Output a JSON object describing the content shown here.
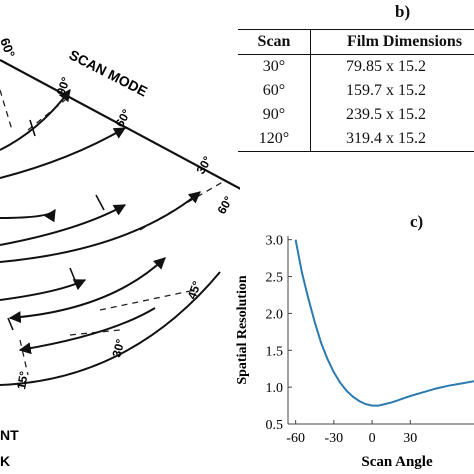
{
  "diagram": {
    "scan_mode_label": "SCAN MODE",
    "arc_labels": [
      "90°",
      "60°",
      "30°",
      "60°",
      "45°",
      "30°",
      "15°"
    ],
    "corner_top": "60°",
    "bottom_text_1": "NT",
    "bottom_text_2": "K"
  },
  "table": {
    "label": "b)",
    "headers": [
      "Scan",
      "Film Dimensions"
    ],
    "rows": [
      {
        "scan": "30°",
        "dims": "79.85 x 15.2"
      },
      {
        "scan": "60°",
        "dims": "159.7 x 15.2"
      },
      {
        "scan": "90°",
        "dims": "239.5 x 15.2"
      },
      {
        "scan": "120°",
        "dims": "319.4 x 15.2"
      }
    ]
  },
  "panel_c_label": "c)",
  "chart_data": {
    "type": "line",
    "xlabel": "Scan Angle",
    "ylabel": "Spatial Resolution",
    "xlim": [
      -66,
      80
    ],
    "ylim": [
      0.5,
      3.05
    ],
    "xticks": [
      -60,
      -30,
      0,
      30
    ],
    "yticks": [
      0.5,
      1.0,
      1.5,
      2.0,
      2.5,
      3.0
    ],
    "xtick_labels": [
      "-60",
      "-30",
      "0",
      "30"
    ],
    "ytick_labels": [
      "0.5",
      "1.0",
      "1.5",
      "2.0",
      "2.5",
      "3.0"
    ],
    "series_color": "#2b7bb0",
    "series": [
      {
        "x": [
          -60,
          -55,
          -50,
          -45,
          -40,
          -35,
          -30,
          -25,
          -20,
          -15,
          -10,
          -5,
          0,
          5,
          10,
          15,
          20,
          25,
          30,
          40,
          50,
          60,
          70,
          80
        ],
        "y": [
          3.0,
          2.55,
          2.2,
          1.88,
          1.6,
          1.38,
          1.2,
          1.06,
          0.95,
          0.87,
          0.81,
          0.77,
          0.75,
          0.75,
          0.77,
          0.79,
          0.82,
          0.85,
          0.88,
          0.93,
          0.98,
          1.02,
          1.05,
          1.08
        ]
      }
    ]
  }
}
